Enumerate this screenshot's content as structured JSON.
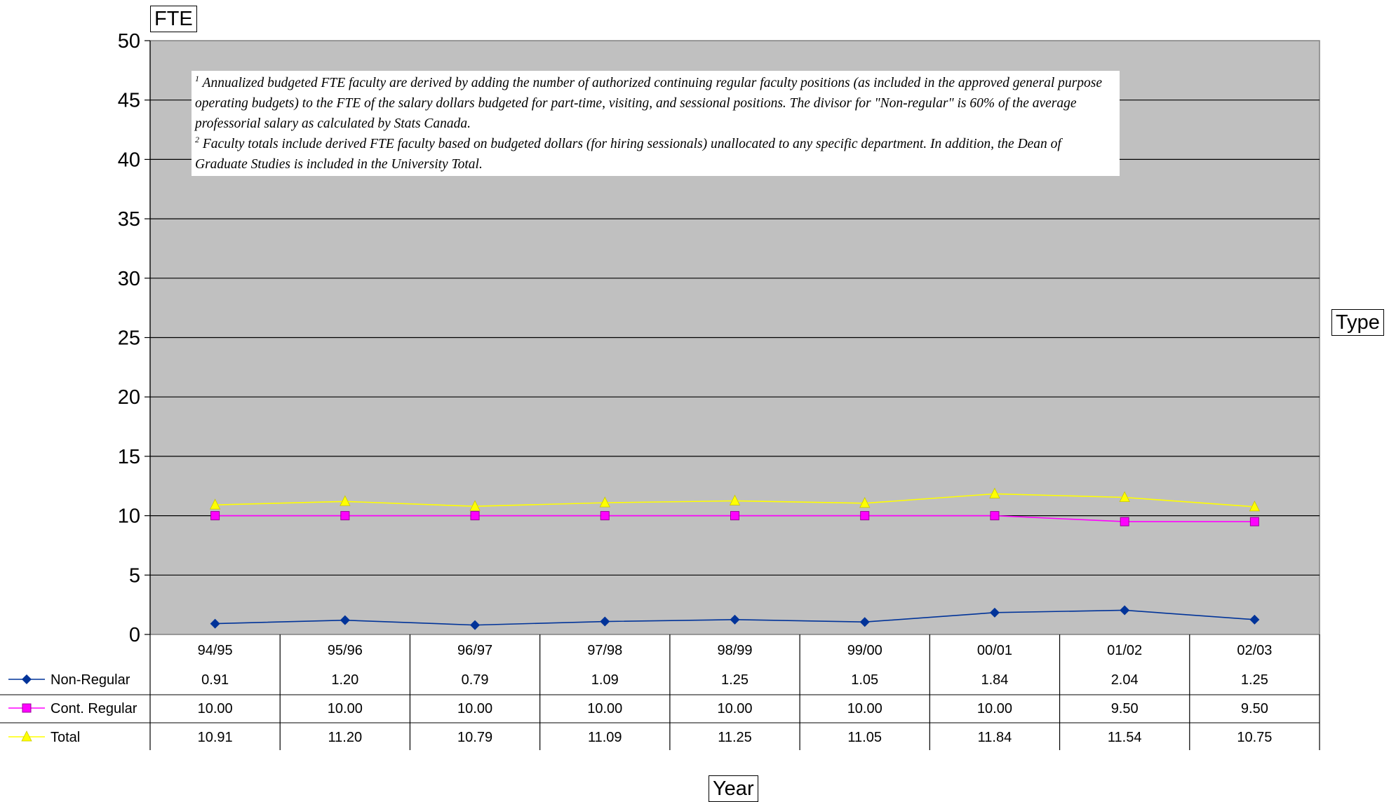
{
  "chart_data": {
    "type": "line",
    "ylabel": "FTE",
    "xlabel": "Year",
    "legend_title": "Type",
    "ylim": [
      0,
      50
    ],
    "yticks": [
      0,
      5,
      10,
      15,
      20,
      25,
      30,
      35,
      40,
      45,
      50
    ],
    "grid": true,
    "legend": "data-table-left",
    "categories": [
      "94/95",
      "95/96",
      "96/97",
      "97/98",
      "98/99",
      "99/00",
      "00/01",
      "01/02",
      "02/03"
    ],
    "series": [
      {
        "name": "Non-Regular",
        "color": "#003399",
        "marker": "diamond",
        "values": [
          0.91,
          1.2,
          0.79,
          1.09,
          1.25,
          1.05,
          1.84,
          2.04,
          1.25
        ],
        "labels": [
          "0.91",
          "1.20",
          "0.79",
          "1.09",
          "1.25",
          "1.05",
          "1.84",
          "2.04",
          "1.25"
        ]
      },
      {
        "name": "Cont. Regular",
        "color": "#ff00ff",
        "marker": "square",
        "values": [
          10.0,
          10.0,
          10.0,
          10.0,
          10.0,
          10.0,
          10.0,
          9.5,
          9.5
        ],
        "labels": [
          "10.00",
          "10.00",
          "10.00",
          "10.00",
          "10.00",
          "10.00",
          "10.00",
          "9.50",
          "9.50"
        ]
      },
      {
        "name": "Total",
        "color": "#ffff00",
        "marker": "triangle",
        "values": [
          10.91,
          11.2,
          10.79,
          11.09,
          11.25,
          11.05,
          11.84,
          11.54,
          10.75
        ],
        "labels": [
          "10.91",
          "11.20",
          "10.79",
          "11.09",
          "11.25",
          "11.05",
          "11.84",
          "11.54",
          "10.75"
        ]
      }
    ],
    "plot_background": "#c0c0c0"
  },
  "notes": {
    "n1_marker": "1",
    "n1_text": "Annualized budgeted FTE faculty are derived by adding the number of authorized continuing regular faculty positions (as included in the approved general purpose operating budgets) to the FTE of the salary dollars budgeted for part-time, visiting, and sessional positions.  The divisor for \"Non-regular\" is 60% of the average professorial salary as calculated by Stats Canada.",
    "n2_marker": "2",
    "n2_text": "Faculty totals include derived FTE faculty based on budgeted dollars (for hiring sessionals) unallocated to any specific department.  In addition, the Dean of Graduate Studies is included in the University Total."
  }
}
